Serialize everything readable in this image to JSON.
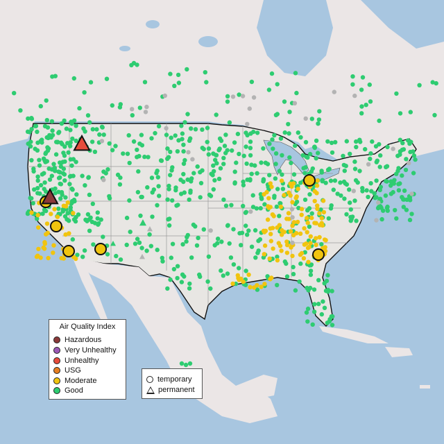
{
  "legend": {
    "title": "Air Quality Index",
    "categories": [
      {
        "label": "Hazardous",
        "color": "#8b3a3a"
      },
      {
        "label": "Very Unhealthy",
        "color": "#9b59b6"
      },
      {
        "label": "Unhealthy",
        "color": "#e74c3c"
      },
      {
        "label": "USG",
        "color": "#e67e22"
      },
      {
        "label": "Moderate",
        "color": "#f1c40f"
      },
      {
        "label": "Good",
        "color": "#2ecc71"
      }
    ]
  },
  "monitor_types": [
    {
      "label": "temporary",
      "shape": "circle"
    },
    {
      "label": "permanent",
      "shape": "triangle"
    }
  ],
  "colors": {
    "ocean": "#a8c6e0",
    "land": "#e8e6e3",
    "us_land": "#e8e6e3",
    "grey_station": "#b3b3b3"
  }
}
